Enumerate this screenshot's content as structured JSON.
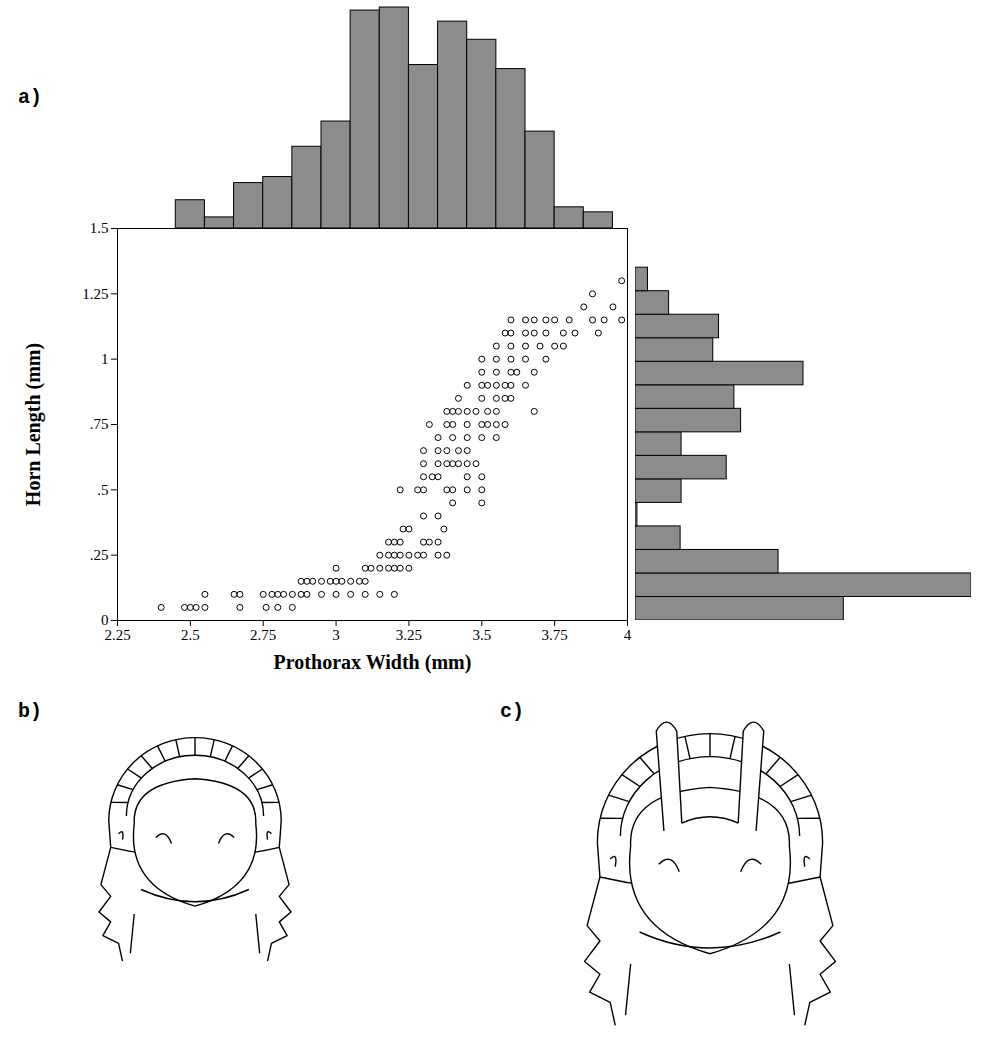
{
  "panel_labels": [
    "a)",
    "b)",
    "c)"
  ],
  "chart_data": [
    {
      "type": "scatter",
      "x_label": "Prothorax Width (mm)",
      "y_label": "Horn Length (mm)",
      "marker": "open circle",
      "color": "#000000",
      "xlim": [
        2.25,
        4
      ],
      "xticks": [
        2.25,
        2.5,
        2.75,
        3,
        3.25,
        3.5,
        3.75,
        4
      ],
      "ylim": [
        0,
        1.5
      ],
      "yticks": [
        0,
        {
          "value": 0.25,
          "label": ".25"
        },
        {
          "value": 0.5,
          "label": ".5"
        },
        {
          "value": 0.75,
          "label": ".75"
        },
        1,
        1.25,
        1.5
      ],
      "x": [
        2.4,
        2.48,
        2.5,
        2.52,
        2.55,
        2.67,
        2.76,
        2.8,
        2.85,
        2.55,
        2.65,
        2.67,
        2.75,
        2.78,
        2.8,
        2.82,
        2.85,
        2.88,
        2.9,
        2.95,
        3.0,
        3.05,
        3.1,
        3.15,
        3.2,
        2.88,
        2.9,
        2.92,
        2.95,
        2.98,
        3.0,
        3.02,
        3.05,
        3.08,
        3.1,
        3.0,
        3.1,
        3.12,
        3.15,
        3.18,
        3.2,
        3.22,
        3.25,
        3.15,
        3.18,
        3.2,
        3.22,
        3.25,
        3.28,
        3.3,
        3.35,
        3.38,
        3.18,
        3.2,
        3.22,
        3.3,
        3.32,
        3.35,
        3.23,
        3.25,
        3.37,
        3.3,
        3.35,
        3.4,
        3.5,
        3.22,
        3.28,
        3.3,
        3.38,
        3.4,
        3.45,
        3.5,
        3.3,
        3.33,
        3.35,
        3.45,
        3.5,
        3.3,
        3.35,
        3.38,
        3.4,
        3.42,
        3.45,
        3.48,
        3.3,
        3.35,
        3.38,
        3.42,
        3.45,
        3.35,
        3.4,
        3.45,
        3.5,
        3.55,
        3.32,
        3.38,
        3.4,
        3.45,
        3.5,
        3.52,
        3.55,
        3.58,
        3.38,
        3.4,
        3.42,
        3.45,
        3.48,
        3.52,
        3.55,
        3.68,
        3.42,
        3.5,
        3.55,
        3.58,
        3.6,
        3.45,
        3.5,
        3.52,
        3.55,
        3.58,
        3.6,
        3.65,
        3.5,
        3.55,
        3.6,
        3.62,
        3.68,
        3.5,
        3.55,
        3.6,
        3.65,
        3.72,
        3.55,
        3.6,
        3.65,
        3.7,
        3.75,
        3.78,
        3.58,
        3.6,
        3.65,
        3.68,
        3.72,
        3.78,
        3.82,
        3.9,
        3.6,
        3.65,
        3.68,
        3.72,
        3.75,
        3.8,
        3.88,
        3.92,
        3.98,
        3.85,
        3.95,
        3.88,
        3.98
      ],
      "values": [
        0.05,
        0.05,
        0.05,
        0.05,
        0.05,
        0.05,
        0.05,
        0.05,
        0.05,
        0.1,
        0.1,
        0.1,
        0.1,
        0.1,
        0.1,
        0.1,
        0.1,
        0.1,
        0.1,
        0.1,
        0.1,
        0.1,
        0.1,
        0.1,
        0.1,
        0.15,
        0.15,
        0.15,
        0.15,
        0.15,
        0.15,
        0.15,
        0.15,
        0.15,
        0.15,
        0.2,
        0.2,
        0.2,
        0.2,
        0.2,
        0.2,
        0.2,
        0.2,
        0.25,
        0.25,
        0.25,
        0.25,
        0.25,
        0.25,
        0.25,
        0.25,
        0.25,
        0.3,
        0.3,
        0.3,
        0.3,
        0.3,
        0.3,
        0.35,
        0.35,
        0.35,
        0.4,
        0.4,
        0.45,
        0.45,
        0.5,
        0.5,
        0.5,
        0.5,
        0.5,
        0.5,
        0.5,
        0.55,
        0.55,
        0.55,
        0.55,
        0.55,
        0.6,
        0.6,
        0.6,
        0.6,
        0.6,
        0.6,
        0.6,
        0.65,
        0.65,
        0.65,
        0.65,
        0.65,
        0.7,
        0.7,
        0.7,
        0.7,
        0.7,
        0.75,
        0.75,
        0.75,
        0.75,
        0.75,
        0.75,
        0.75,
        0.75,
        0.8,
        0.8,
        0.8,
        0.8,
        0.8,
        0.8,
        0.8,
        0.8,
        0.85,
        0.85,
        0.85,
        0.85,
        0.85,
        0.9,
        0.9,
        0.9,
        0.9,
        0.9,
        0.9,
        0.9,
        0.95,
        0.95,
        0.95,
        0.95,
        0.95,
        1.0,
        1.0,
        1.0,
        1.0,
        1.0,
        1.05,
        1.05,
        1.05,
        1.05,
        1.05,
        1.05,
        1.1,
        1.1,
        1.1,
        1.1,
        1.1,
        1.1,
        1.1,
        1.1,
        1.15,
        1.15,
        1.15,
        1.15,
        1.15,
        1.15,
        1.15,
        1.15,
        1.15,
        1.2,
        1.2,
        1.25,
        1.3
      ]
    },
    {
      "type": "histogram",
      "color": "#8c8c8c",
      "tick_labels": false,
      "xlim": [
        2.25,
        4
      ],
      "ylim": [
        0,
        220
      ],
      "bins": [
        2.45,
        2.55,
        2.65,
        2.75,
        2.85,
        2.95,
        3.05,
        3.15,
        3.25,
        3.35,
        3.45,
        3.55,
        3.65,
        3.75,
        3.85,
        3.95
      ],
      "values": [
        28,
        11,
        45,
        51,
        81,
        106,
        216,
        219,
        162,
        205,
        187,
        158,
        96,
        21,
        16
      ]
    },
    {
      "type": "histogram",
      "orientation": "horizontal",
      "color": "#8c8c8c",
      "tick_labels": false,
      "xlim": [
        0,
        350
      ],
      "ylim": [
        0,
        1.5
      ],
      "bins": [
        0,
        0.09,
        0.18,
        0.27,
        0.36,
        0.45,
        0.54,
        0.63,
        0.72,
        0.81,
        0.9,
        0.99,
        1.08,
        1.17,
        1.26,
        1.35
      ],
      "values": [
        217,
        350,
        149,
        47,
        2,
        48,
        95,
        48,
        110,
        103,
        175,
        81,
        87,
        35,
        13
      ]
    }
  ]
}
